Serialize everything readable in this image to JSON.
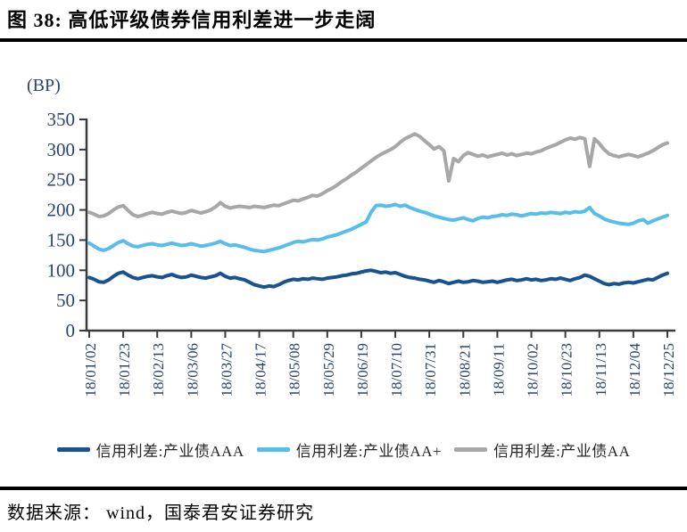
{
  "figure": {
    "title": "图 38:  高低评级债券信用利差进一步走阔",
    "unit_label": "(BP)",
    "source": "数据来源： wind，国泰君安证券研究"
  },
  "colors": {
    "axis_line": "#3A3A3E",
    "axis_text": "#2B446E",
    "divider": "#000000"
  },
  "chart_data": {
    "type": "line",
    "title": "高低评级债券信用利差进一步走阔",
    "ylabel": "(BP)",
    "ylim": [
      0,
      350
    ],
    "yticks": [
      0,
      50,
      100,
      150,
      200,
      250,
      300,
      350
    ],
    "grid": false,
    "legend_position": "bottom",
    "ticks_every": 7,
    "x_tick_labels": [
      "18/01/02",
      "18/01/23",
      "18/02/13",
      "18/03/06",
      "18/03/27",
      "18/04/17",
      "18/05/08",
      "18/05/29",
      "18/06/19",
      "18/07/10",
      "18/07/31",
      "18/08/21",
      "18/09/11",
      "18/10/02",
      "18/10/23",
      "18/11/13",
      "18/12/04",
      "18/12/25"
    ],
    "series": [
      {
        "name": "信用利差:产业债AAA",
        "color": "#17538F",
        "values": [
          88,
          85,
          81,
          80,
          84,
          90,
          95,
          97,
          92,
          88,
          86,
          88,
          90,
          91,
          89,
          88,
          91,
          93,
          90,
          88,
          89,
          92,
          90,
          88,
          87,
          89,
          91,
          95,
          90,
          87,
          88,
          86,
          84,
          80,
          76,
          74,
          72,
          74,
          73,
          76,
          80,
          83,
          85,
          84,
          86,
          85,
          87,
          86,
          85,
          87,
          88,
          89,
          91,
          92,
          94,
          95,
          97,
          99,
          100,
          98,
          96,
          97,
          95,
          96,
          93,
          90,
          88,
          87,
          85,
          84,
          82,
          80,
          83,
          81,
          78,
          80,
          82,
          80,
          81,
          83,
          82,
          80,
          81,
          82,
          80,
          82,
          84,
          85,
          83,
          84,
          86,
          84,
          85,
          83,
          84,
          86,
          85,
          87,
          85,
          83,
          86,
          88,
          92,
          90,
          86,
          82,
          78,
          76,
          78,
          77,
          79,
          80,
          79,
          81,
          83,
          85,
          84,
          88,
          92,
          95
        ]
      },
      {
        "name": "信用利差:产业债AA+",
        "color": "#57BDEB",
        "values": [
          145,
          140,
          135,
          133,
          136,
          141,
          146,
          149,
          144,
          140,
          139,
          141,
          143,
          144,
          142,
          141,
          143,
          145,
          143,
          141,
          142,
          144,
          142,
          140,
          141,
          143,
          145,
          148,
          144,
          141,
          142,
          140,
          138,
          135,
          133,
          132,
          131,
          133,
          135,
          137,
          140,
          143,
          146,
          148,
          147,
          149,
          151,
          150,
          152,
          155,
          157,
          159,
          162,
          165,
          168,
          172,
          176,
          180,
          196,
          207,
          208,
          206,
          207,
          209,
          206,
          208,
          204,
          201,
          198,
          196,
          193,
          190,
          188,
          186,
          184,
          183,
          185,
          187,
          184,
          182,
          186,
          188,
          187,
          189,
          190,
          192,
          191,
          193,
          192,
          190,
          192,
          194,
          193,
          195,
          194,
          196,
          195,
          194,
          196,
          195,
          197,
          196,
          198,
          204,
          194,
          190,
          185,
          182,
          180,
          178,
          177,
          176,
          178,
          182,
          184,
          178,
          182,
          185,
          188,
          191
        ]
      },
      {
        "name": "信用利差:产业债AA",
        "color": "#A7A7A7",
        "values": [
          196,
          193,
          189,
          190,
          194,
          200,
          205,
          207,
          199,
          192,
          189,
          191,
          194,
          196,
          194,
          193,
          196,
          198,
          196,
          194,
          196,
          199,
          197,
          195,
          197,
          200,
          205,
          212,
          206,
          203,
          205,
          206,
          205,
          204,
          206,
          205,
          204,
          206,
          208,
          207,
          210,
          213,
          216,
          215,
          218,
          221,
          224,
          223,
          227,
          232,
          236,
          241,
          247,
          252,
          258,
          263,
          269,
          275,
          281,
          287,
          292,
          296,
          300,
          305,
          312,
          318,
          322,
          326,
          322,
          315,
          308,
          301,
          305,
          298,
          248,
          285,
          280,
          290,
          295,
          292,
          289,
          291,
          288,
          290,
          292,
          294,
          291,
          293,
          290,
          292,
          294,
          293,
          296,
          298,
          302,
          305,
          308,
          312,
          316,
          319,
          317,
          320,
          318,
          272,
          318,
          310,
          300,
          293,
          290,
          288,
          290,
          292,
          290,
          288,
          291,
          294,
          298,
          303,
          308,
          311
        ]
      }
    ]
  }
}
